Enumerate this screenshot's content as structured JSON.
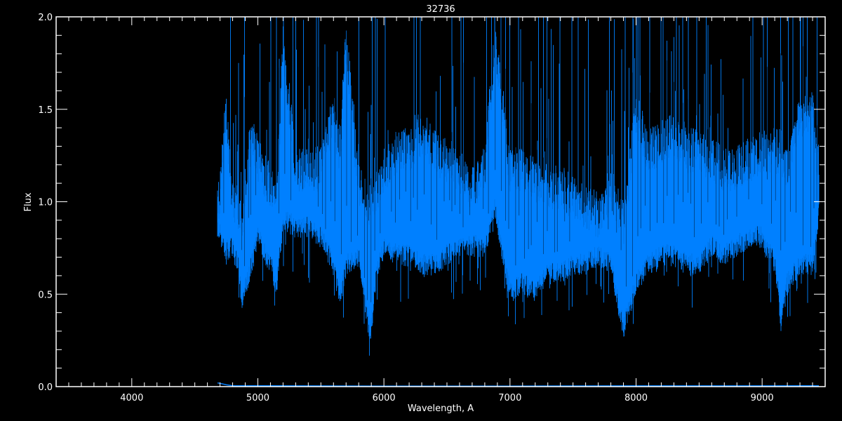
{
  "chart_data": {
    "type": "line",
    "title": "32736",
    "xlabel": "Wavelength, A",
    "ylabel": "Flux",
    "xlim": [
      3400,
      9500
    ],
    "ylim": [
      0.0,
      2.0
    ],
    "xticks": [
      "4000",
      "5000",
      "6000",
      "7000",
      "8000",
      "9000"
    ],
    "xtick_values": [
      4000,
      5000,
      6000,
      7000,
      8000,
      9000
    ],
    "yticks": [
      "0.0",
      "0.5",
      "1.0",
      "1.5",
      "2.0"
    ],
    "ytick_values": [
      0.0,
      0.5,
      1.0,
      1.5,
      2.0
    ],
    "grid": false,
    "background": "#000000",
    "axis_color": "#ffffff",
    "series_color": "#0080ff",
    "series": [
      {
        "role": "flux",
        "envelope_columns": [
          "wavelength",
          "flux_low",
          "flux_high"
        ],
        "envelope": [
          [
            4680,
            0.8,
            1.05
          ],
          [
            4750,
            0.68,
            1.6
          ],
          [
            4800,
            0.7,
            1.1
          ],
          [
            4850,
            0.6,
            1.1
          ],
          [
            4870,
            0.4,
            1.0
          ],
          [
            4950,
            0.6,
            1.5
          ],
          [
            5000,
            0.75,
            1.35
          ],
          [
            5100,
            0.6,
            1.2
          ],
          [
            5150,
            0.48,
            1.1
          ],
          [
            5200,
            0.85,
            2.0
          ],
          [
            5300,
            0.8,
            1.3
          ],
          [
            5400,
            0.8,
            1.3
          ],
          [
            5500,
            0.75,
            1.3
          ],
          [
            5600,
            0.6,
            1.6
          ],
          [
            5650,
            0.4,
            1.4
          ],
          [
            5700,
            0.6,
            2.0
          ],
          [
            5800,
            0.65,
            1.2
          ],
          [
            5890,
            0.2,
            1.1
          ],
          [
            5950,
            0.6,
            1.2
          ],
          [
            6000,
            0.7,
            1.3
          ],
          [
            6100,
            0.65,
            1.4
          ],
          [
            6200,
            0.65,
            1.4
          ],
          [
            6300,
            0.6,
            1.5
          ],
          [
            6400,
            0.6,
            1.4
          ],
          [
            6500,
            0.65,
            1.35
          ],
          [
            6600,
            0.7,
            1.3
          ],
          [
            6700,
            0.7,
            1.2
          ],
          [
            6800,
            0.7,
            1.3
          ],
          [
            6880,
            0.9,
            2.0
          ],
          [
            7000,
            0.45,
            1.3
          ],
          [
            7100,
            0.5,
            1.3
          ],
          [
            7200,
            0.45,
            1.25
          ],
          [
            7300,
            0.55,
            1.2
          ],
          [
            7400,
            0.55,
            1.2
          ],
          [
            7500,
            0.6,
            1.15
          ],
          [
            7600,
            0.6,
            1.1
          ],
          [
            7700,
            0.65,
            1.05
          ],
          [
            7800,
            0.6,
            1.2
          ],
          [
            7900,
            0.25,
            1.0
          ],
          [
            8000,
            0.5,
            1.6
          ],
          [
            8100,
            0.6,
            1.4
          ],
          [
            8200,
            0.65,
            1.45
          ],
          [
            8300,
            0.65,
            1.5
          ],
          [
            8400,
            0.6,
            1.4
          ],
          [
            8500,
            0.6,
            1.4
          ],
          [
            8600,
            0.7,
            1.35
          ],
          [
            8700,
            0.65,
            1.3
          ],
          [
            8800,
            0.7,
            1.3
          ],
          [
            8900,
            0.75,
            1.35
          ],
          [
            9000,
            0.75,
            1.4
          ],
          [
            9100,
            0.6,
            1.4
          ],
          [
            9150,
            0.3,
            1.4
          ],
          [
            9200,
            0.5,
            1.3
          ],
          [
            9300,
            0.6,
            1.6
          ],
          [
            9400,
            0.6,
            1.6
          ],
          [
            9450,
            0.9,
            1.3
          ]
        ]
      },
      {
        "role": "error",
        "x": [
          4680,
          4700,
          4750,
          4800,
          5000,
          6000,
          7000,
          8000,
          9000,
          9450
        ],
        "y": [
          0.02,
          0.018,
          0.01,
          0.005,
          0.005,
          0.003,
          0.003,
          0.004,
          0.004,
          0.005
        ]
      }
    ]
  }
}
